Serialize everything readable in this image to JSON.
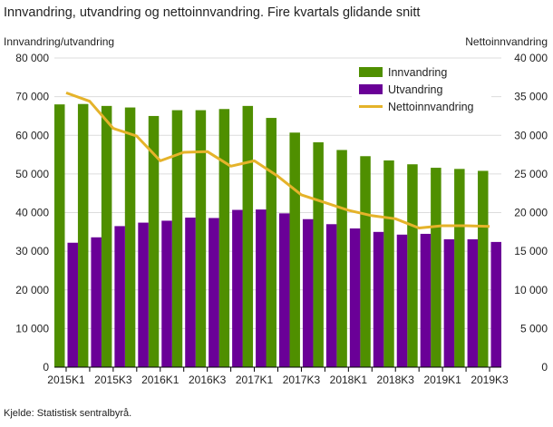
{
  "chart_data": {
    "type": "bar",
    "title": "Innvandring, utvandring og nettoinnvandring. Fire kvartals glidande snitt",
    "ylabel": "Innvandring/utvandring",
    "y2label": "Nettoinnvandring",
    "ylim": [
      0,
      80000
    ],
    "y2lim": [
      0,
      40000
    ],
    "yticks": [
      "0",
      "10 000",
      "20 000",
      "30 000",
      "40 000",
      "50 000",
      "60 000",
      "70 000",
      "80 000"
    ],
    "y2ticks": [
      "0",
      "5 000",
      "10 000",
      "15 000",
      "20 000",
      "25 000",
      "30 000",
      "35 000",
      "40 000"
    ],
    "categories": [
      "2015K1",
      "2015K2",
      "2015K3",
      "2015K4",
      "2016K1",
      "2016K2",
      "2016K3",
      "2016K4",
      "2017K1",
      "2017K2",
      "2017K3",
      "2017K4",
      "2018K1",
      "2018K2",
      "2018K3",
      "2018K4",
      "2019K1",
      "2019K2",
      "2019K3"
    ],
    "xtick_labels": [
      "2015K1",
      "",
      "2015K3",
      "",
      "2016K1",
      "",
      "2016K3",
      "",
      "2017K1",
      "",
      "2017K3",
      "",
      "2018K1",
      "",
      "2018K3",
      "",
      "2019K1",
      "",
      "2019K3"
    ],
    "series": [
      {
        "name": "Innvandring",
        "type": "bar",
        "axis": "left",
        "color": "#4f8f00",
        "values": [
          68000,
          68100,
          67600,
          67200,
          65000,
          66500,
          66500,
          66800,
          67600,
          64500,
          60700,
          58200,
          56200,
          54600,
          53500,
          52500,
          51600,
          51300,
          50800
        ]
      },
      {
        "name": "Utvandring",
        "type": "bar",
        "axis": "left",
        "color": "#6a0097",
        "values": [
          32200,
          33600,
          36500,
          37400,
          37900,
          38700,
          38600,
          40700,
          40800,
          39800,
          38300,
          37000,
          35900,
          35000,
          34300,
          34500,
          33100,
          33100,
          32400
        ]
      },
      {
        "name": "Nettoinnvandring",
        "type": "line",
        "axis": "right",
        "color": "#e5b32a",
        "values": [
          35500,
          34400,
          30900,
          29900,
          26700,
          27800,
          27900,
          26000,
          26700,
          24700,
          22300,
          21300,
          20300,
          19600,
          19200,
          18000,
          18300,
          18300,
          18200
        ]
      }
    ],
    "legend": "top-right",
    "grid": true
  },
  "source": "Kjelde: Statistisk sentralbyrå."
}
